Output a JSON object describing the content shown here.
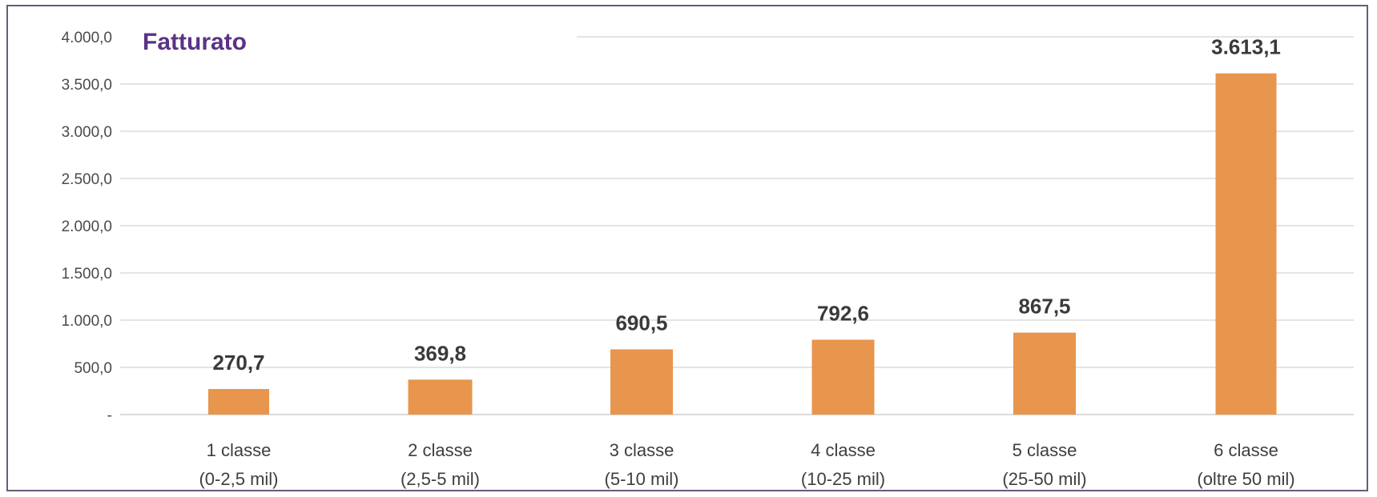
{
  "chart_data": {
    "type": "bar",
    "title": "Fatturato",
    "categories": [
      [
        "1 classe",
        "(0-2,5 mil)"
      ],
      [
        "2 classe",
        "(2,5-5 mil)"
      ],
      [
        "3 classe",
        "(5-10 mil)"
      ],
      [
        "4 classe",
        "(10-25 mil)"
      ],
      [
        "5 classe",
        "(25-50 mil)"
      ],
      [
        "6 classe",
        "(oltre 50 mil)"
      ]
    ],
    "values": [
      270.7,
      369.8,
      690.5,
      792.6,
      867.5,
      3613.1
    ],
    "value_labels": [
      "270,7",
      "369,8",
      "690,5",
      "792,6",
      "867,5",
      "3.613,1"
    ],
    "ylim": [
      0,
      4000
    ],
    "yticks": [
      0,
      500,
      1000,
      1500,
      2000,
      2500,
      3000,
      3500,
      4000
    ],
    "ytick_labels": [
      "-",
      "500,0",
      "1.000,0",
      "1.500,0",
      "2.000,0",
      "2.500,0",
      "3.000,0",
      "3.500,0",
      "4.000,0"
    ],
    "grid": true,
    "bar_color": "#e8954d",
    "title_color": "#5b3286"
  }
}
